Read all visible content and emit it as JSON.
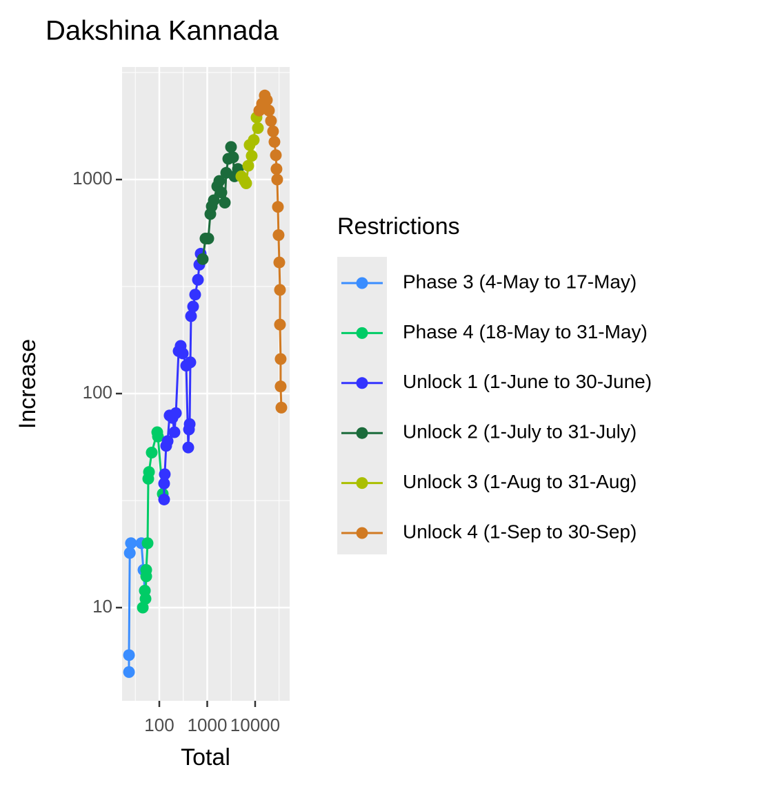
{
  "chart_data": {
    "type": "line",
    "title": "Dakshina Kannada",
    "x_label": "Total",
    "y_label": "Increase",
    "log_x": true,
    "log_y": true,
    "grid": true,
    "xlim": [
      16.7,
      52500
    ],
    "ylim": [
      3.67,
      3357
    ],
    "xticks": [
      100,
      1000,
      10000
    ],
    "yticks": [
      10,
      100,
      1000
    ],
    "legend_title": "Restrictions",
    "legend_position": "right",
    "series": [
      {
        "name": "Phase 3 (4-May to 17-May)",
        "color": "#3a8dff",
        "x": [
          23.3,
          23.3,
          24.2,
          25.6,
          42.3,
          46.7,
          49.9
        ],
        "values": [
          5,
          6,
          18,
          20,
          20,
          15,
          12
        ]
      },
      {
        "name": "Phase 4 (18-May to 31-May)",
        "color": "#00cc66",
        "x": [
          45.2,
          49.9,
          51.5,
          53.3,
          53.3,
          56.9,
          58.8,
          60.9,
          69.4,
          90.5,
          93.6,
          118
        ],
        "values": [
          10,
          12,
          11,
          14,
          15,
          20,
          40,
          43,
          53,
          66,
          63,
          34
        ]
      },
      {
        "name": "Unlock 1 (1-June to 30-June)",
        "color": "#3333ff",
        "x": [
          126,
          126,
          130,
          139,
          149,
          164,
          188,
          207,
          222,
          253,
          279,
          309,
          364,
          402,
          416,
          430,
          444,
          459,
          507,
          560,
          640,
          684,
          730
        ],
        "values": [
          32,
          38,
          42,
          57,
          60,
          79,
          77,
          66,
          81,
          158,
          167,
          154,
          135,
          56,
          68,
          72,
          140,
          230,
          255,
          290,
          340,
          400,
          450
        ]
      },
      {
        "name": "Unlock 2 (1-July to 31-July)",
        "color": "#1b6b3b",
        "x": [
          806,
          920,
          1052,
          1162,
          1242,
          1371,
          1618,
          1787,
          1974,
          2330,
          2490,
          2750,
          3135,
          3465,
          3700,
          4370
        ],
        "values": [
          425,
          530,
          530,
          690,
          750,
          800,
          930,
          985,
          870,
          780,
          1075,
          1250,
          1420,
          1270,
          1035,
          1120
        ]
      },
      {
        "name": "Unlock 3 (1-Aug to 31-Aug)",
        "color": "#aabf00",
        "x": [
          5150,
          6080,
          6500,
          7180,
          7670,
          8470,
          9350,
          10690,
          11430
        ],
        "values": [
          1035,
          985,
          960,
          1160,
          1450,
          1290,
          1530,
          1950,
          1740
        ]
      },
      {
        "name": "Unlock 4 (1-Sep to 30-Sep)",
        "color": "#d17a22",
        "x": [
          12200,
          13940,
          15890,
          17570,
          19400,
          21400,
          23660,
          25290,
          27040,
          27900,
          28840,
          29850,
          30830,
          31900,
          32960,
          32960,
          34040,
          34040,
          35240
        ],
        "values": [
          2100,
          2260,
          2470,
          2350,
          2100,
          1880,
          1680,
          1500,
          1300,
          1120,
          1000,
          745,
          550,
          410,
          305,
          210,
          145,
          108,
          86
        ]
      }
    ]
  }
}
